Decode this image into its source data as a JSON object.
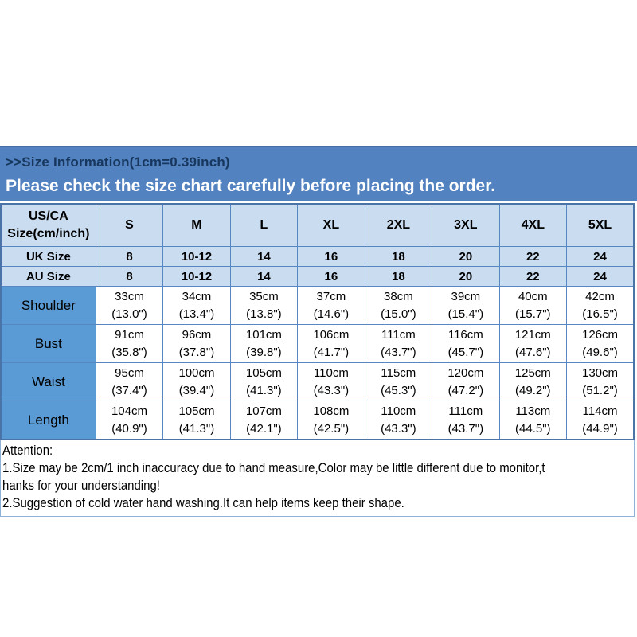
{
  "banner": {
    "title": ">>Size Information(1cm=0.39inch)",
    "subtitle": "Please check the size chart carefully before placing the order.",
    "bg_color": "#5282bf",
    "title_color": "#17375e",
    "subtitle_color": "#ffffff"
  },
  "size_table": {
    "corner_label": "US/CA Size(cm/inch)",
    "columns": [
      "S",
      "M",
      "L",
      "XL",
      "2XL",
      "3XL",
      "4XL",
      "5XL"
    ],
    "conversion_rows": [
      {
        "label": "UK Size",
        "values": [
          "8",
          "10-12",
          "14",
          "16",
          "18",
          "20",
          "22",
          "24"
        ]
      },
      {
        "label": "AU Size",
        "values": [
          "8",
          "10-12",
          "14",
          "16",
          "18",
          "20",
          "22",
          "24"
        ]
      }
    ],
    "measurement_rows": [
      {
        "label": "Shoulder",
        "cm": [
          "33cm",
          "34cm",
          "35cm",
          "37cm",
          "38cm",
          "39cm",
          "40cm",
          "42cm"
        ],
        "inch": [
          "(13.0\")",
          "(13.4\")",
          "(13.8\")",
          "(14.6\")",
          "(15.0\")",
          "(15.4\")",
          "(15.7\")",
          "(16.5\")"
        ]
      },
      {
        "label": "Bust",
        "cm": [
          "91cm",
          "96cm",
          "101cm",
          "106cm",
          "111cm",
          "116cm",
          "121cm",
          "126cm"
        ],
        "inch": [
          "(35.8\")",
          "(37.8\")",
          "(39.8\")",
          "(41.7\")",
          "(43.7\")",
          "(45.7\")",
          "(47.6\")",
          "(49.6\")"
        ]
      },
      {
        "label": "Waist",
        "cm": [
          "95cm",
          "100cm",
          "105cm",
          "110cm",
          "115cm",
          "120cm",
          "125cm",
          "130cm"
        ],
        "inch": [
          "(37.4\")",
          "(39.4\")",
          "(41.3\")",
          "(43.3\")",
          "(45.3\")",
          "(47.2\")",
          "(49.2\")",
          "(51.2\")"
        ]
      },
      {
        "label": "Length",
        "cm": [
          "104cm",
          "105cm",
          "107cm",
          "108cm",
          "110cm",
          "111cm",
          "113cm",
          "114cm"
        ],
        "inch": [
          "(40.9\")",
          "(41.3\")",
          "(42.1\")",
          "(42.5\")",
          "(43.3\")",
          "(43.7\")",
          "(44.5\")",
          "(44.9\")"
        ]
      }
    ],
    "colors": {
      "light_row_bg": "#cadcf0",
      "label_cell_bg": "#5b9bd5",
      "border": "#5687c2",
      "data_cell_bg": "#ffffff"
    }
  },
  "attention": {
    "lines": [
      "Attention:",
      "1.Size may be 2cm/1 inch inaccuracy due to hand measure,Color may be little different due to monitor,t",
      "hanks for your understanding!",
      "2.Suggestion of cold water hand washing.It can help items keep their shape."
    ]
  }
}
